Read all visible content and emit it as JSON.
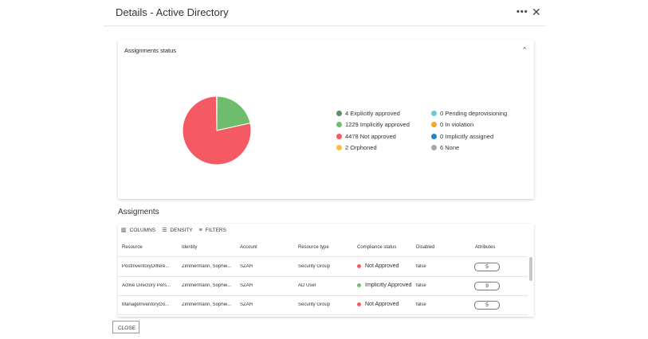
{
  "header": {
    "title": "Details - Active Directory",
    "more_label": "•••",
    "close_label": "✕"
  },
  "status_card": {
    "title": "Assignments status",
    "collapse_label": "^"
  },
  "chart_data": {
    "type": "pie",
    "slices": [
      {
        "label": "4 Explicitly approved",
        "value": 4,
        "color": "#5e8e62"
      },
      {
        "label": "1229 Implicitly approved",
        "value": 1229,
        "color": "#6dbd6d"
      },
      {
        "label": "4478 Not approved",
        "value": 4478,
        "color": "#f55a64"
      },
      {
        "label": "2 Orphoned",
        "value": 2,
        "color": "#f4c146"
      },
      {
        "label": "0 Pending deprovisioning",
        "value": 0,
        "color": "#5fd0d6"
      },
      {
        "label": "0 In violation",
        "value": 0,
        "color": "#f0a72a"
      },
      {
        "label": "0 Implicitly assigned",
        "value": 0,
        "color": "#1c86d6"
      },
      {
        "label": "6 None",
        "value": 6,
        "color": "#a8a8a8"
      }
    ]
  },
  "assignments": {
    "title": "Assigments",
    "toolbar": {
      "columns": "COLUMNS",
      "density": "DENSITY",
      "filters": "FILTERS"
    },
    "columns": [
      "Resource",
      "Identity",
      "Account",
      "Resource type",
      "Compliance status",
      "Disabled",
      "Attributes"
    ],
    "rows": [
      {
        "resource": "PostInventoryDiffere...",
        "identity": "Zimmermann, Sophie...",
        "account": "SZAH",
        "type": "Security Group",
        "status": "Not Approved",
        "status_color": "#f55a64",
        "disabled": "false",
        "attributes": "5"
      },
      {
        "resource": "Active Directory Pers...",
        "identity": "Zimmermann, Sophie...",
        "account": "SZAH",
        "type": "AD User",
        "status": "Implicitly Approved",
        "status_color": "#6dbd6d",
        "disabled": "false",
        "attributes": "9"
      },
      {
        "resource": "ManageInventoryDo...",
        "identity": "Zimmermann, Sophie...",
        "account": "SZAH",
        "type": "Security Group",
        "status": "Not Approved",
        "status_color": "#f55a64",
        "disabled": "false",
        "attributes": "5"
      }
    ]
  },
  "footer": {
    "close_label": "CLOSE"
  }
}
